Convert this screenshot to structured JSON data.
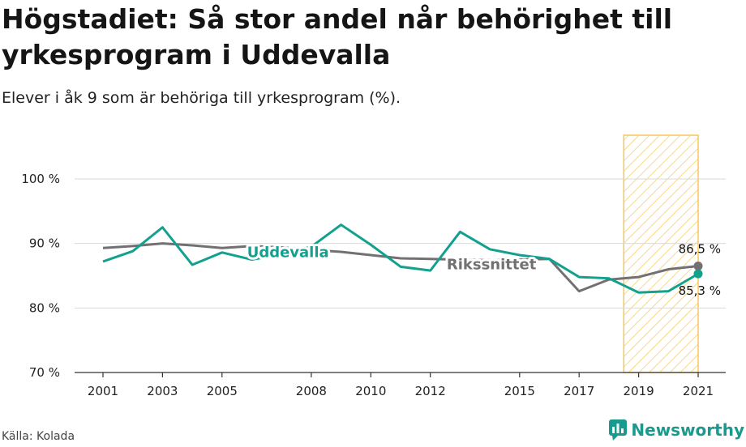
{
  "header": {
    "title": "Högstadiet: Så stor andel når behörighet till yrkesprogram i Uddevalla",
    "subtitle": "Elever i åk 9 som är behöriga till yrkesprogram (%)."
  },
  "footer": {
    "source": "Källa: Kolada",
    "brand": "Newsworthy"
  },
  "colors": {
    "uddevalla": "#12a08f",
    "riksnittet": "#737073",
    "highlight": "#f7c75a",
    "grid": "#d9d9d9"
  },
  "chart_data": {
    "type": "line",
    "title": "Högstadiet: Så stor andel når behörighet till yrkesprogram i Uddevalla",
    "subtitle": "Elever i åk 9 som är behöriga till yrkesprogram (%).",
    "x": [
      2001,
      2002,
      2003,
      2004,
      2005,
      2006,
      2007,
      2008,
      2009,
      2010,
      2011,
      2012,
      2013,
      2014,
      2015,
      2016,
      2017,
      2018,
      2019,
      2020,
      2021
    ],
    "xticks": [
      2001,
      2003,
      2005,
      2008,
      2010,
      2012,
      2015,
      2017,
      2019,
      2021
    ],
    "ylim": [
      70,
      100
    ],
    "yticks": [
      70,
      80,
      90,
      100
    ],
    "ytick_labels": [
      "70 %",
      "80 %",
      "90 %",
      "100 %"
    ],
    "grid": true,
    "highlight_range": [
      2018.5,
      2021
    ],
    "series": [
      {
        "name": "Uddevalla",
        "values": [
          87.2,
          88.8,
          92.5,
          86.7,
          88.6,
          87.5,
          88.3,
          89.5,
          92.9,
          89.8,
          86.4,
          85.8,
          91.8,
          89.1,
          88.2,
          87.6,
          84.8,
          84.6,
          82.4,
          82.6,
          85.3
        ],
        "end_label": "85,3 %"
      },
      {
        "name": "Rikssnittet",
        "values": [
          89.3,
          89.6,
          90.0,
          89.7,
          89.3,
          89.6,
          89.4,
          89.0,
          88.7,
          88.2,
          87.7,
          87.6,
          87.5,
          87.4,
          87.5,
          87.6,
          82.6,
          84.4,
          84.8,
          86.0,
          86.5
        ],
        "end_label": "86,5 %"
      }
    ]
  }
}
